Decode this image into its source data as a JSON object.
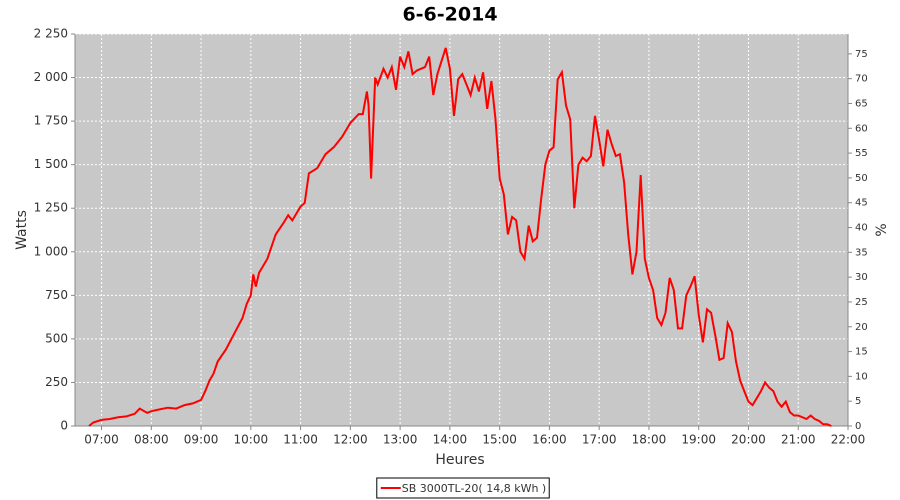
{
  "chart_data": {
    "type": "line",
    "title": "6-6-2014",
    "x_label": "Heures",
    "y_label": "Watts",
    "y2_label": "%",
    "xlim": [
      "06:28",
      "22:00"
    ],
    "xticks": [
      "07:00",
      "08:00",
      "09:00",
      "10:00",
      "11:00",
      "12:00",
      "13:00",
      "14:00",
      "15:00",
      "16:00",
      "17:00",
      "18:00",
      "19:00",
      "20:00",
      "21:00",
      "22:00"
    ],
    "ylim": [
      0,
      2250
    ],
    "yticks": [
      0,
      250,
      500,
      750,
      {
        "value": 1000,
        "label": "1 000"
      },
      {
        "value": 1250,
        "label": "1 250"
      },
      {
        "value": 1500,
        "label": "1 500"
      },
      {
        "value": 1750,
        "label": "1 750"
      },
      {
        "value": 2000,
        "label": "2 000"
      },
      {
        "value": 2250,
        "label": "2 250"
      }
    ],
    "y2lim": [
      0,
      79
    ],
    "y2ticks": [
      0,
      5,
      10,
      15,
      20,
      25,
      30,
      35,
      40,
      45,
      50,
      55,
      60,
      65,
      70,
      75
    ],
    "grid": true,
    "legend": "bottom",
    "x": [
      "06:45",
      "06:50",
      "07:00",
      "07:10",
      "07:20",
      "07:30",
      "07:40",
      "07:46",
      "07:55",
      "08:00",
      "08:10",
      "08:20",
      "08:30",
      "08:40",
      "08:50",
      "09:00",
      "09:05",
      "09:10",
      "09:15",
      "09:20",
      "09:30",
      "09:40",
      "09:50",
      "09:55",
      "10:00",
      "10:03",
      "10:06",
      "10:10",
      "10:20",
      "10:30",
      "10:40",
      "10:45",
      "10:50",
      "11:00",
      "11:05",
      "11:10",
      "11:20",
      "11:30",
      "11:40",
      "11:50",
      "12:00",
      "12:10",
      "12:15",
      "12:20",
      "12:22",
      "12:25",
      "12:30",
      "12:33",
      "12:40",
      "12:45",
      "12:50",
      "12:55",
      "13:00",
      "13:05",
      "13:10",
      "13:15",
      "13:20",
      "13:30",
      "13:35",
      "13:40",
      "13:45",
      "13:55",
      "14:00",
      "14:05",
      "14:10",
      "14:15",
      "14:20",
      "14:25",
      "14:30",
      "14:35",
      "14:40",
      "14:45",
      "14:50",
      "14:55",
      "15:00",
      "15:05",
      "15:10",
      "15:15",
      "15:20",
      "15:25",
      "15:30",
      "15:35",
      "15:40",
      "15:45",
      "15:50",
      "15:55",
      "16:00",
      "16:05",
      "16:10",
      "16:15",
      "16:20",
      "16:25",
      "16:30",
      "16:35",
      "16:40",
      "16:45",
      "16:50",
      "16:55",
      "17:00",
      "17:05",
      "17:10",
      "17:15",
      "17:20",
      "17:25",
      "17:30",
      "17:35",
      "17:40",
      "17:45",
      "17:50",
      "17:55",
      "18:00",
      "18:05",
      "18:10",
      "18:15",
      "18:20",
      "18:25",
      "18:30",
      "18:35",
      "18:40",
      "18:45",
      "18:50",
      "18:55",
      "19:00",
      "19:05",
      "19:10",
      "19:15",
      "19:20",
      "19:25",
      "19:30",
      "19:35",
      "19:40",
      "19:45",
      "19:50",
      "19:55",
      "20:00",
      "20:05",
      "20:10",
      "20:15",
      "20:20",
      "20:25",
      "20:30",
      "20:35",
      "20:40",
      "20:45",
      "20:50",
      "20:55",
      "21:00",
      "21:10",
      "21:15",
      "21:20",
      "21:25",
      "21:30",
      "21:35",
      "21:40"
    ],
    "series": [
      {
        "name": "SB 3000TL-20( 14,8 kWh )",
        "color": "#ff0000",
        "values": [
          0,
          20,
          35,
          40,
          50,
          55,
          70,
          100,
          75,
          85,
          95,
          105,
          100,
          120,
          130,
          150,
          200,
          260,
          300,
          370,
          440,
          530,
          620,
          700,
          750,
          870,
          800,
          880,
          960,
          1100,
          1170,
          1210,
          1180,
          1260,
          1280,
          1450,
          1480,
          1560,
          1600,
          1660,
          1740,
          1790,
          1790,
          1920,
          1840,
          1420,
          2000,
          1960,
          2050,
          2000,
          2060,
          1930,
          2120,
          2060,
          2150,
          2020,
          2040,
          2060,
          2120,
          1900,
          2020,
          2170,
          2050,
          1780,
          1990,
          2020,
          1960,
          1900,
          2000,
          1920,
          2030,
          1820,
          1980,
          1760,
          1420,
          1330,
          1100,
          1200,
          1180,
          1000,
          960,
          1150,
          1060,
          1080,
          1300,
          1500,
          1580,
          1600,
          1990,
          2030,
          1840,
          1760,
          1250,
          1500,
          1540,
          1520,
          1550,
          1780,
          1640,
          1490,
          1700,
          1620,
          1550,
          1560,
          1400,
          1100,
          870,
          1000,
          1440,
          960,
          850,
          780,
          620,
          580,
          650,
          850,
          780,
          560,
          560,
          750,
          800,
          860,
          640,
          480,
          670,
          650,
          520,
          380,
          390,
          590,
          540,
          370,
          260,
          200,
          140,
          120,
          160,
          200,
          250,
          220,
          200,
          140,
          110,
          140,
          80,
          60,
          60,
          40,
          60,
          40,
          30,
          10,
          10,
          0
        ]
      }
    ]
  }
}
